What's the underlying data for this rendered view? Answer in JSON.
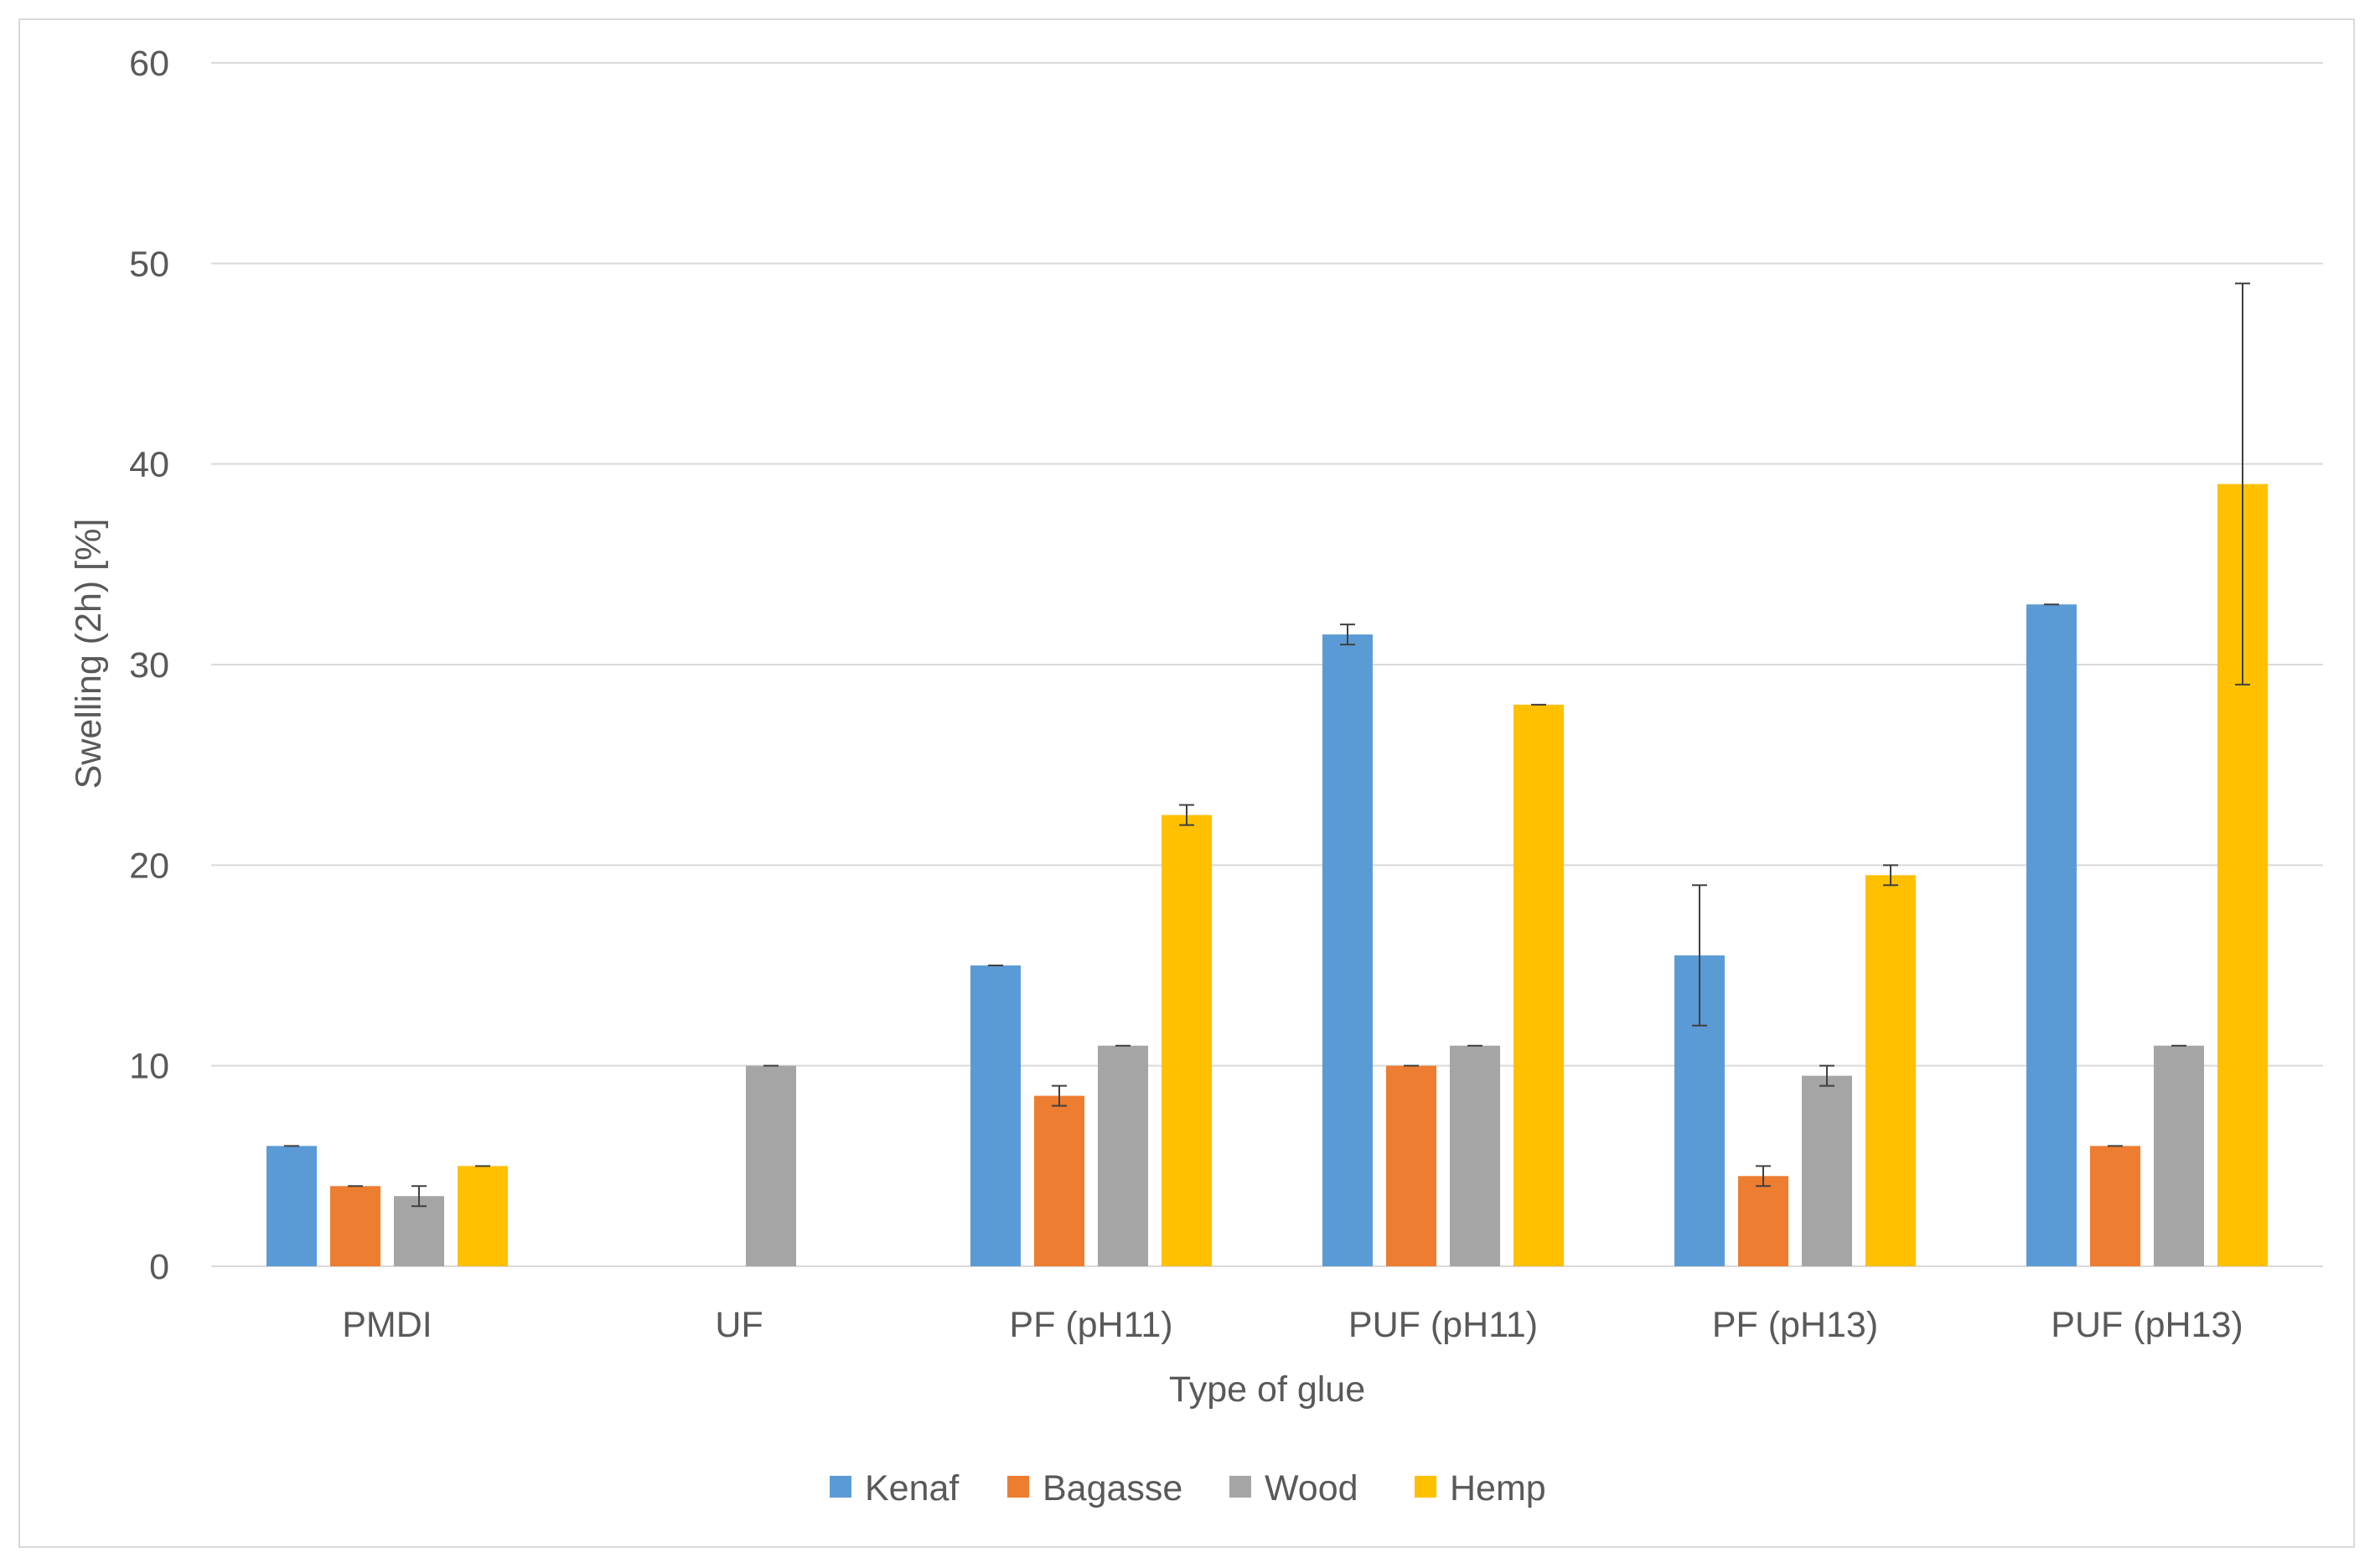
{
  "chart_data": {
    "type": "bar",
    "title": "",
    "xlabel": "Type of glue",
    "ylabel": "Swelling (2h) [%]",
    "ylim": [
      0,
      60
    ],
    "yticks": [
      0,
      10,
      20,
      30,
      40,
      50,
      60
    ],
    "grid": true,
    "legend_position": "bottom",
    "categories": [
      "PMDI",
      "UF",
      "PF (pH11)",
      "PUF (pH11)",
      "PF (pH13)",
      "PUF (pH13)"
    ],
    "series": [
      {
        "name": "Kenaf",
        "color": "#5b9bd5",
        "values": [
          6,
          null,
          15,
          31.5,
          15.5,
          33
        ],
        "errors": [
          0,
          null,
          0,
          0.5,
          3.5,
          0
        ]
      },
      {
        "name": "Bagasse",
        "color": "#ed7d31",
        "values": [
          4,
          null,
          8.5,
          10,
          4.5,
          6
        ],
        "errors": [
          0,
          null,
          0.5,
          0,
          0.5,
          0
        ]
      },
      {
        "name": "Wood",
        "color": "#a5a5a5",
        "values": [
          3.5,
          10,
          11,
          11,
          9.5,
          11
        ],
        "errors": [
          0.5,
          0,
          0,
          0,
          0.5,
          0
        ]
      },
      {
        "name": "Hemp",
        "color": "#ffc000",
        "values": [
          5,
          null,
          22.5,
          28,
          19.5,
          39
        ],
        "errors": [
          0,
          null,
          0.5,
          0,
          0.5,
          10
        ]
      }
    ]
  }
}
